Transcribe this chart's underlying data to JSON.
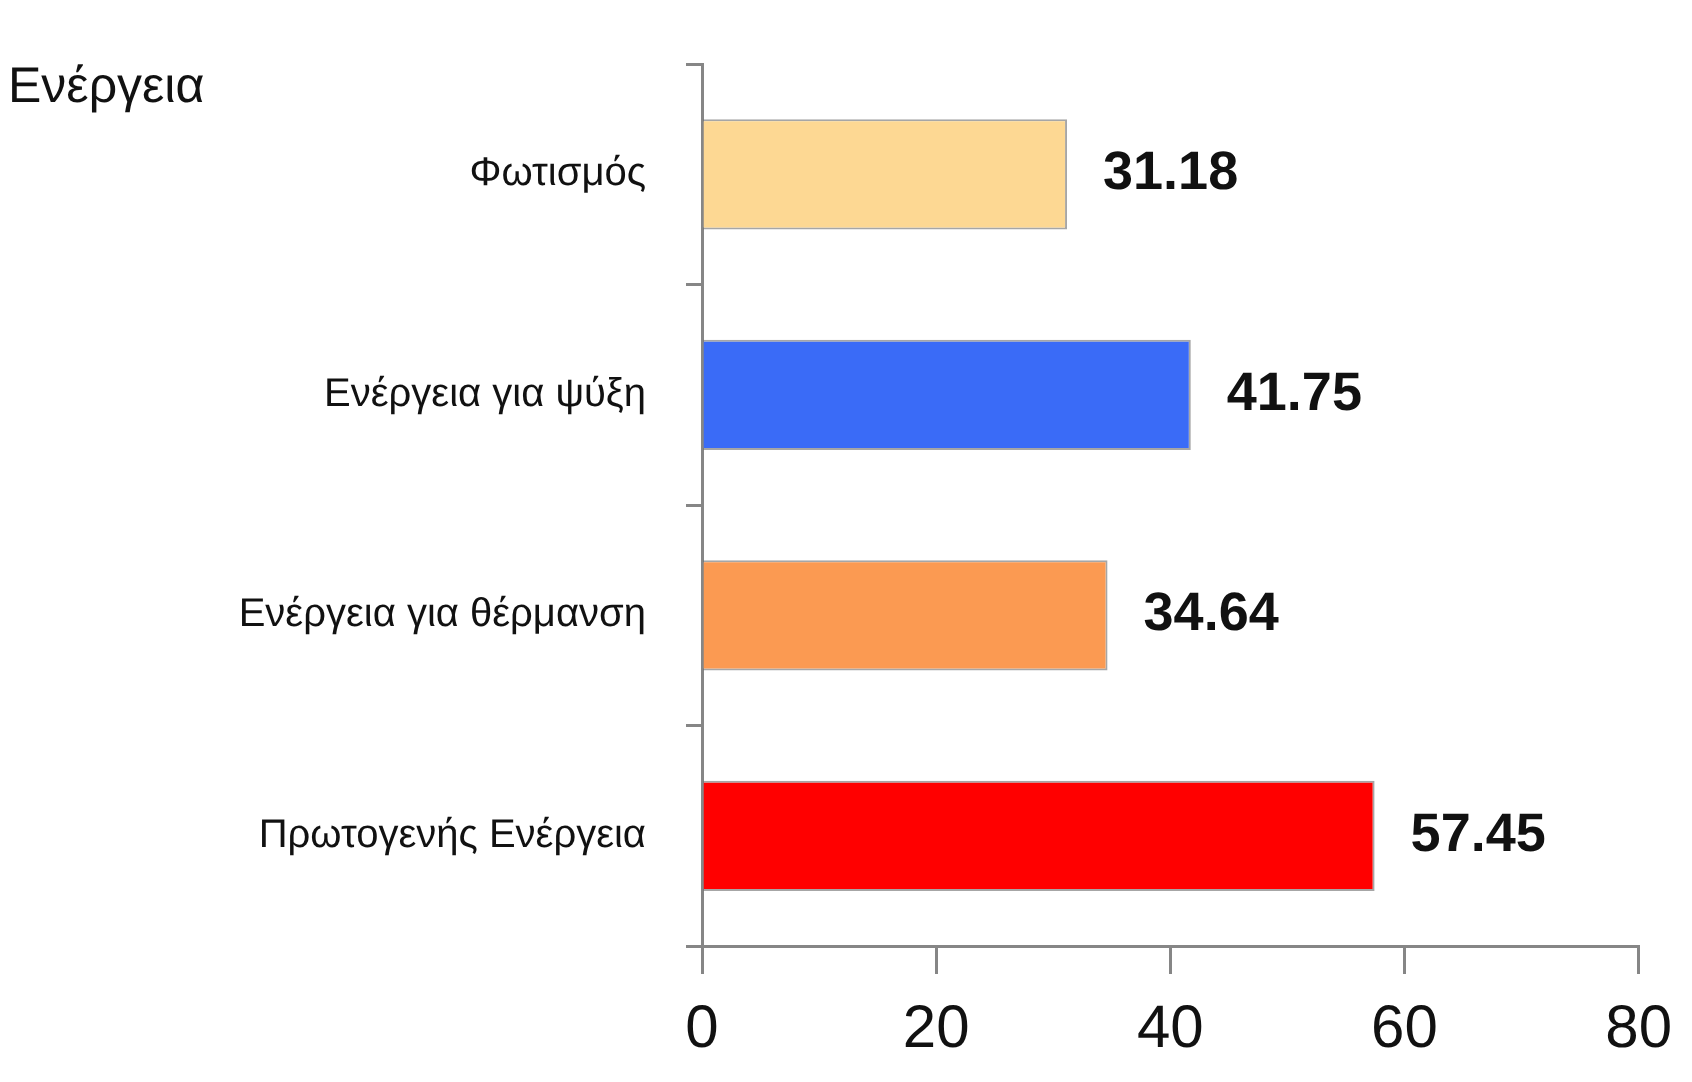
{
  "chart_data": {
    "type": "bar",
    "orientation": "horizontal",
    "categories": [
      "Φωτισμός",
      "Ενέργεια για ψύξη",
      "Ενέργεια για θέρμανση",
      "Πρωτογενής Ενέργεια"
    ],
    "values": [
      31.18,
      41.75,
      34.64,
      57.45
    ],
    "colors": [
      "#fdd893",
      "#3a6bf7",
      "#fb9a52",
      "#ff0000"
    ],
    "xlim": [
      0,
      80
    ],
    "xticks": [
      0,
      20,
      40,
      60,
      80
    ],
    "data_labels": true,
    "annotations": [
      "Ενέργεια"
    ]
  }
}
